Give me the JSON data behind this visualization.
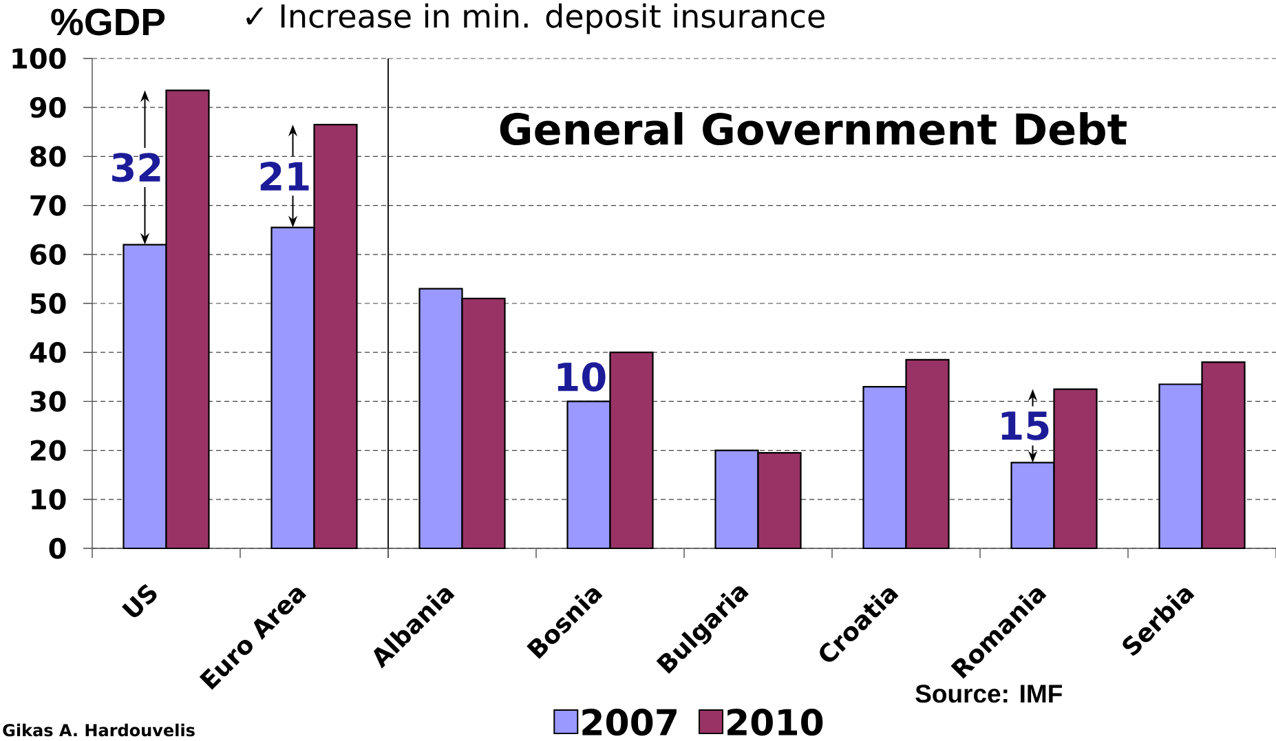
{
  "chart_data": [
    {
      "type": "bar",
      "ylabel": "%GDP",
      "categories": [
        "US",
        "Euro Area"
      ],
      "series": [
        {
          "color": "#9999ff",
          "values": [
            62,
            65.5
          ]
        },
        {
          "color": "#993366",
          "values": [
            93.5,
            86.5
          ]
        }
      ],
      "ylim": [
        0,
        100
      ],
      "yticks": [
        0,
        10,
        20,
        30,
        40,
        50,
        60,
        70,
        80,
        90,
        100
      ],
      "grid": "y",
      "annotations": [
        {
          "text": "32",
          "x": "US",
          "y": 62
        },
        {
          "text": "21",
          "x": "Euro Area",
          "y": 65.5
        },
        "✓ Increase in min. deposit insurance",
        "Gikas A. Hardouvelis"
      ]
    },
    {
      "type": "bar",
      "title": "General Government Debt",
      "categories": [
        "Albania",
        "Bosnia",
        "Bulgaria",
        "Croatia",
        "Romania",
        "Serbia"
      ],
      "series": [
        {
          "name": "2007",
          "color": "#9999ff",
          "values": [
            53,
            30,
            20,
            33,
            17.5,
            33.5
          ]
        },
        {
          "name": "2010",
          "color": "#993366",
          "values": [
            51,
            40,
            19.5,
            38.5,
            32.5,
            38
          ]
        }
      ],
      "ylim": [
        0,
        100
      ],
      "yticks": [
        0,
        10,
        20,
        30,
        40,
        50,
        60,
        70,
        80,
        90,
        100
      ],
      "tick_labels": "x",
      "grid": "y",
      "legend": "bottom",
      "annotations": [
        {
          "text": "10",
          "x": "Bosnia",
          "y": 30
        },
        {
          "text": "15",
          "x": "Romania",
          "y": 17.5
        },
        "Source: IMF"
      ]
    }
  ]
}
